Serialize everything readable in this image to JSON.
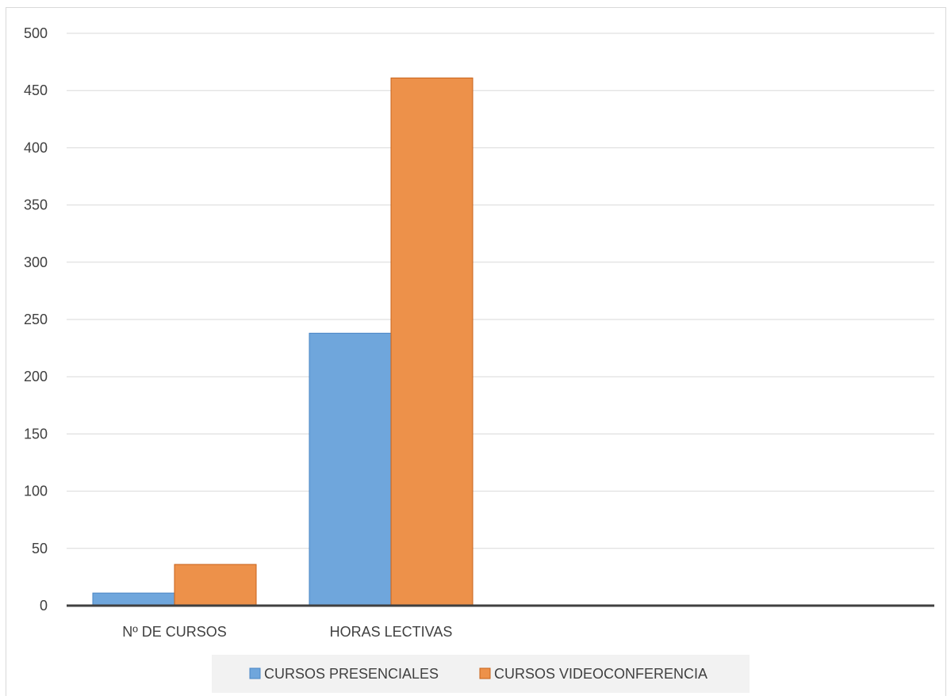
{
  "chart_data": {
    "type": "bar",
    "categories": [
      "Nº DE CURSOS",
      "HORAS LECTIVAS"
    ],
    "series": [
      {
        "name": "CURSOS PRESENCIALES",
        "values": [
          11,
          238
        ],
        "color": "#6fa6dc",
        "stroke": "#4a86c5"
      },
      {
        "name": "CURSOS VIDEOCONFERENCIA",
        "values": [
          36,
          461
        ],
        "color": "#ed914a",
        "stroke": "#c8621a"
      }
    ],
    "ylim": [
      0,
      500
    ],
    "yticks": [
      0,
      50,
      100,
      150,
      200,
      250,
      300,
      350,
      400,
      450,
      500
    ],
    "grid": true,
    "legend_position": "bottom",
    "title": "",
    "xlabel": "",
    "ylabel": ""
  }
}
